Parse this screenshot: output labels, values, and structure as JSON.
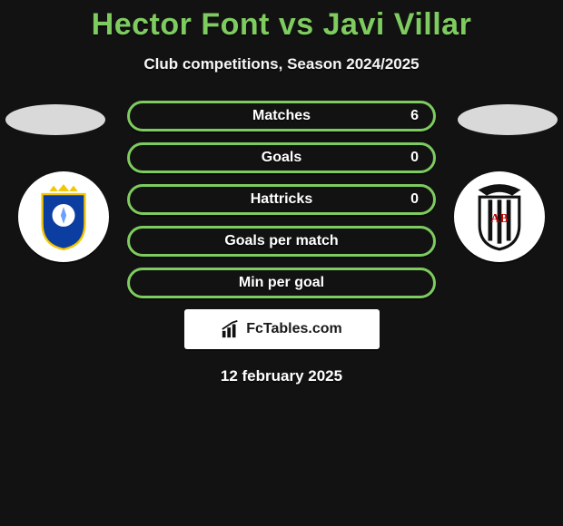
{
  "title": "Hector Font vs Javi Villar",
  "subtitle": "Club competitions, Season 2024/2025",
  "date": "12 february 2025",
  "brand": "FcTables.com",
  "colors": {
    "accent": "#7ecb5f",
    "bg": "#121212",
    "row_border": "#7ecb5f",
    "row_bg": "#121212",
    "text": "#ffffff"
  },
  "stats": [
    {
      "label": "Matches",
      "value": "6"
    },
    {
      "label": "Goals",
      "value": "0"
    },
    {
      "label": "Hattricks",
      "value": "0"
    },
    {
      "label": "Goals per match",
      "value": ""
    },
    {
      "label": "Min per goal",
      "value": ""
    }
  ],
  "left_club": {
    "name": "Real Oviedo",
    "shield_fill": "#0b3ea0",
    "shield_stroke": "#f2c600"
  },
  "right_club": {
    "name": "Albacete",
    "shield_fill": "#ffffff",
    "shield_stroke": "#111111"
  }
}
